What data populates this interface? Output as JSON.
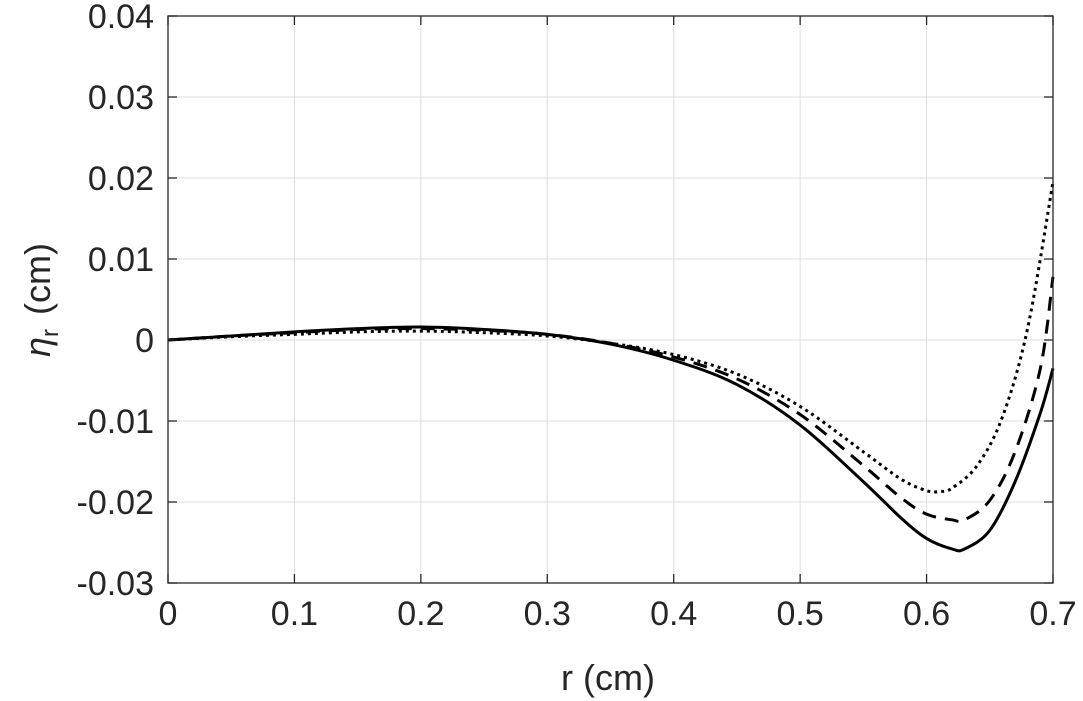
{
  "chart_data": {
    "type": "line",
    "title": "",
    "xlabel": "r (cm)",
    "ylabel_symbol": "η",
    "ylabel_subscript": "r",
    "ylabel_unit": "(cm)",
    "xlim": [
      0,
      0.7
    ],
    "ylim": [
      -0.03,
      0.04
    ],
    "grid": true,
    "x_ticks": [
      0,
      0.1,
      0.2,
      0.3,
      0.4,
      0.5,
      0.6,
      0.7
    ],
    "x_tick_labels": [
      "0",
      "0.1",
      "0.2",
      "0.3",
      "0.4",
      "0.5",
      "0.6",
      "0.7"
    ],
    "y_ticks": [
      -0.03,
      -0.02,
      -0.01,
      0,
      0.01,
      0.02,
      0.03,
      0.04
    ],
    "y_tick_labels": [
      "-0.03",
      "-0.02",
      "-0.01",
      "0",
      "0.01",
      "0.02",
      "0.03",
      "0.04"
    ],
    "series": [
      {
        "style": "solid",
        "color": "#000000",
        "x": [
          0,
          0.05,
          0.1,
          0.15,
          0.2,
          0.25,
          0.3,
          0.35,
          0.4,
          0.45,
          0.5,
          0.55,
          0.58,
          0.6,
          0.62,
          0.63,
          0.65,
          0.67,
          0.69,
          0.7
        ],
        "y": [
          0,
          0.0005,
          0.001,
          0.0014,
          0.0016,
          0.0013,
          0.0007,
          -0.0005,
          -0.0025,
          -0.0055,
          -0.0105,
          -0.0175,
          -0.022,
          -0.0245,
          -0.0258,
          -0.0258,
          -0.0235,
          -0.0175,
          -0.009,
          -0.0035
        ]
      },
      {
        "style": "dashed",
        "color": "#000000",
        "x": [
          0,
          0.05,
          0.1,
          0.15,
          0.2,
          0.25,
          0.3,
          0.35,
          0.4,
          0.45,
          0.5,
          0.55,
          0.58,
          0.6,
          0.62,
          0.63,
          0.65,
          0.67,
          0.69,
          0.7
        ],
        "y": [
          0,
          0.0005,
          0.0009,
          0.0013,
          0.0014,
          0.0012,
          0.0007,
          -0.0004,
          -0.0021,
          -0.0048,
          -0.0092,
          -0.0155,
          -0.0195,
          -0.0215,
          -0.0222,
          -0.0222,
          -0.0198,
          -0.0138,
          -0.0035,
          0.0078
        ]
      },
      {
        "style": "dotted",
        "color": "#000000",
        "x": [
          0,
          0.05,
          0.1,
          0.15,
          0.2,
          0.25,
          0.3,
          0.35,
          0.4,
          0.45,
          0.5,
          0.55,
          0.58,
          0.6,
          0.61,
          0.62,
          0.64,
          0.66,
          0.68,
          0.7
        ],
        "y": [
          0,
          0.0004,
          0.0007,
          0.001,
          0.0011,
          0.0009,
          0.0005,
          -0.0004,
          -0.0018,
          -0.0042,
          -0.0082,
          -0.0138,
          -0.0172,
          -0.0186,
          -0.0187,
          -0.0183,
          -0.0155,
          -0.0095,
          0.0015,
          0.0195
        ]
      }
    ]
  }
}
